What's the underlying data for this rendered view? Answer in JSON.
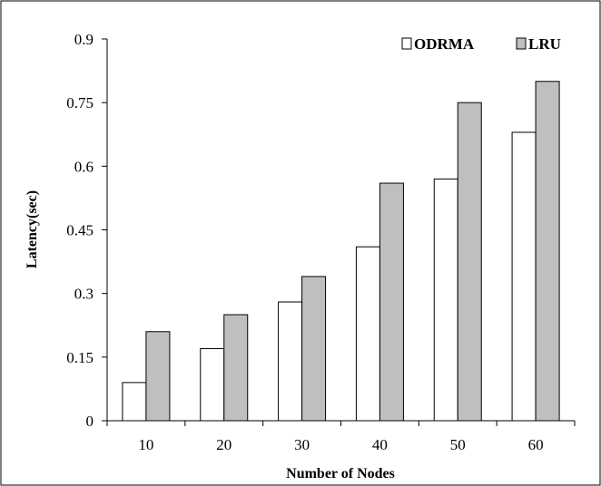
{
  "chart_data": {
    "type": "bar",
    "categories": [
      "10",
      "20",
      "30",
      "40",
      "50",
      "60"
    ],
    "series": [
      {
        "name": "ODRMA",
        "values": [
          0.09,
          0.17,
          0.28,
          0.41,
          0.57,
          0.68
        ],
        "color": "#ffffff"
      },
      {
        "name": "LRU",
        "values": [
          0.21,
          0.25,
          0.34,
          0.56,
          0.75,
          0.8
        ],
        "color": "#bfbfbf"
      }
    ],
    "xlabel": "Number of Nodes",
    "ylabel": "Latency(sec)",
    "ylim": [
      0,
      0.9
    ],
    "yticks": [
      "0",
      "0.15",
      "0.3",
      "0.45",
      "0.6",
      "0.75",
      "0.9"
    ],
    "legend_position": "top-right",
    "grid": false
  }
}
